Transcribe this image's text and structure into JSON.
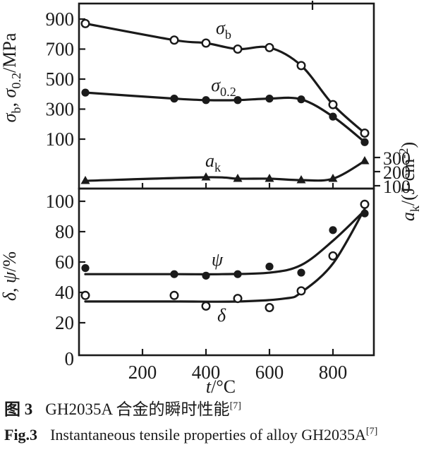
{
  "figure": {
    "caption_cn": {
      "label": "图 3",
      "text": "GH2035A 合金的瞬时性能",
      "ref": "[7]"
    },
    "caption_en": {
      "label": "Fig.3",
      "text": "Instantaneous tensile properties of alloy GH2035A",
      "ref": "[7]"
    }
  },
  "colors": {
    "ink": "#1a1a1a",
    "paper": "#ffffff"
  },
  "chart_data": {
    "type": "line",
    "grid": false,
    "legend": "inline-labels",
    "x_axis": {
      "label_parts": [
        {
          "t": "t",
          "it": true
        },
        {
          "t": "/°C"
        }
      ],
      "ticks": [
        "200",
        "400",
        "600",
        "800"
      ],
      "tick_values": [
        200,
        400,
        600,
        800
      ],
      "range": [
        0,
        930
      ]
    },
    "panels": [
      {
        "id": "strength",
        "left_axis": {
          "label_parts": [
            {
              "t": "σ",
              "it": true
            },
            {
              "t": "b",
              "sub": true
            },
            {
              "t": ", "
            },
            {
              "t": "σ",
              "it": true
            },
            {
              "t": "0.2",
              "sub": true
            },
            {
              "t": "/MPa"
            }
          ],
          "ticks": [
            "100",
            "300",
            "500",
            "700",
            "900"
          ],
          "tick_values": [
            100,
            300,
            500,
            700,
            900
          ],
          "range": [
            0,
            950
          ]
        },
        "right_axis": {
          "label_parts": [
            {
              "t": "a",
              "it": true
            },
            {
              "t": "k",
              "sub": true
            },
            {
              "t": "/(J·cm"
            },
            {
              "t": "-2",
              "sup": true
            },
            {
              "t": ")"
            }
          ],
          "ticks": [
            "100",
            "200",
            "300"
          ],
          "tick_values": [
            100,
            200,
            300
          ],
          "range": [
            100,
            320
          ]
        },
        "series": [
          {
            "id": "sigma-b",
            "label_parts": [
              {
                "t": "σ",
                "it": true
              },
              {
                "t": "b",
                "sub": true
              }
            ],
            "marker": "open-circle",
            "axis": "left",
            "x": [
              20,
              300,
              400,
              500,
              600,
              700,
              800,
              900
            ],
            "y": [
              870,
              760,
              740,
              700,
              710,
              590,
              330,
              140
            ]
          },
          {
            "id": "sigma-02",
            "label_parts": [
              {
                "t": "σ",
                "it": true
              },
              {
                "t": "0.2",
                "sub": true
              }
            ],
            "marker": "filled-circle",
            "axis": "left",
            "x": [
              20,
              300,
              400,
              500,
              600,
              700,
              800,
              900
            ],
            "y": [
              410,
              370,
              360,
              360,
              370,
              365,
              250,
              80
            ]
          },
          {
            "id": "a-k",
            "label_parts": [
              {
                "t": "a",
                "it": true
              },
              {
                "t": "k",
                "sub": true
              }
            ],
            "marker": "filled-triangle",
            "axis": "right",
            "x": [
              20,
              400,
              500,
              600,
              700,
              800,
              900
            ],
            "y": [
              135,
              160,
              150,
              150,
              140,
              150,
              275
            ]
          }
        ]
      },
      {
        "id": "ductility",
        "left_axis": {
          "label_parts": [
            {
              "t": "δ",
              "it": true
            },
            {
              "t": ", "
            },
            {
              "t": "ψ",
              "it": true
            },
            {
              "t": "/%"
            }
          ],
          "ticks": [
            "0",
            "20",
            "40",
            "60",
            "80",
            "100"
          ],
          "tick_values": [
            0,
            20,
            40,
            60,
            80,
            100
          ],
          "range": [
            0,
            110
          ]
        },
        "series": [
          {
            "id": "psi",
            "label_parts": [
              {
                "t": "ψ",
                "it": true
              }
            ],
            "marker": "filled-circle",
            "axis": "left",
            "x": [
              20,
              300,
              400,
              500,
              600,
              700,
              800,
              900
            ],
            "y": [
              56,
              52,
              51,
              52,
              57,
              53,
              81,
              92
            ],
            "trend_x": [
              20,
              300,
              450,
              600,
              700,
              800,
              900
            ],
            "trend_y": [
              52,
              52,
              52,
              53,
              58,
              74,
              94
            ]
          },
          {
            "id": "delta",
            "label_parts": [
              {
                "t": "δ",
                "it": true
              }
            ],
            "marker": "open-circle",
            "axis": "left",
            "x": [
              20,
              300,
              400,
              500,
              600,
              700,
              800,
              900
            ],
            "y": [
              38,
              38,
              31,
              36,
              30,
              41,
              64,
              98
            ],
            "trend_x": [
              20,
              300,
              500,
              650,
              700,
              800,
              900
            ],
            "trend_y": [
              34,
              34,
              34,
              36,
              40,
              59,
              95
            ]
          }
        ]
      }
    ]
  }
}
